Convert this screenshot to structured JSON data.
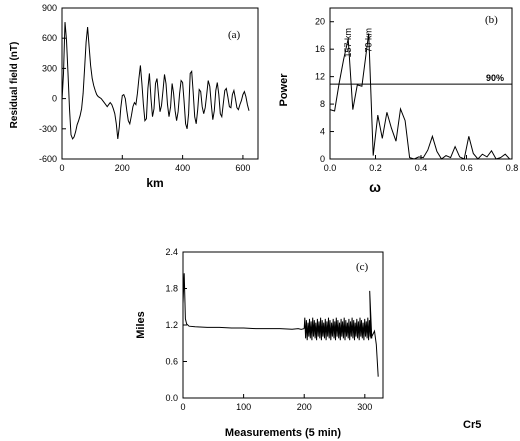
{
  "chart_data": [
    {
      "id": "a",
      "type": "line",
      "panel_label": "(a)",
      "xlabel": "km",
      "ylabel": "Residual field (nT)",
      "xlim": [
        0,
        650
      ],
      "ylim": [
        -600,
        900
      ],
      "xticks": [
        0,
        200,
        400,
        600
      ],
      "yticks": [
        -600,
        -300,
        0,
        300,
        600,
        900
      ],
      "series": [
        {
          "x": [
            0,
            5,
            10,
            15,
            20,
            25,
            30,
            35,
            40,
            45,
            50,
            55,
            60,
            65,
            70,
            75,
            80,
            85,
            90,
            95,
            100,
            105,
            110,
            115,
            120,
            125,
            130,
            135,
            140,
            145,
            150,
            155,
            160,
            165,
            170,
            175,
            180,
            185,
            190,
            195,
            200,
            205,
            210,
            215,
            220,
            225,
            230,
            235,
            240,
            245,
            250,
            255,
            260,
            265,
            270,
            275,
            280,
            285,
            290,
            295,
            300,
            305,
            310,
            315,
            320,
            325,
            330,
            335,
            340,
            345,
            350,
            355,
            360,
            365,
            370,
            375,
            380,
            385,
            390,
            395,
            400,
            405,
            410,
            415,
            420,
            425,
            430,
            435,
            440,
            445,
            450,
            455,
            460,
            465,
            470,
            475,
            480,
            485,
            490,
            495,
            500,
            505,
            510,
            515,
            520,
            525,
            530,
            535,
            540,
            545,
            550,
            555,
            560,
            565,
            570,
            575,
            580,
            585,
            590,
            595,
            600,
            605,
            610,
            615,
            620
          ],
          "y": [
            -20,
            250,
            760,
            580,
            250,
            -100,
            -360,
            -400,
            -380,
            -330,
            -260,
            -220,
            -170,
            -100,
            50,
            300,
            560,
            710,
            520,
            330,
            200,
            130,
            80,
            40,
            20,
            10,
            0,
            -20,
            -40,
            -60,
            -80,
            -60,
            -40,
            -60,
            -100,
            -150,
            -250,
            -400,
            -280,
            -90,
            30,
            40,
            0,
            -120,
            -220,
            -250,
            -170,
            -80,
            -40,
            -60,
            50,
            200,
            330,
            150,
            -60,
            -220,
            -200,
            100,
            250,
            0,
            -180,
            -100,
            150,
            200,
            40,
            -130,
            -70,
            80,
            240,
            150,
            -60,
            -180,
            -80,
            150,
            50,
            -120,
            -220,
            -130,
            50,
            180,
            160,
            -30,
            -250,
            -300,
            -150,
            250,
            270,
            60,
            -180,
            -250,
            -110,
            90,
            70,
            -80,
            -150,
            -90,
            40,
            180,
            120,
            -60,
            -210,
            -120,
            80,
            160,
            40,
            -150,
            -180,
            -50,
            80,
            100,
            20,
            -80,
            -90,
            40,
            80,
            0,
            -90,
            -110,
            -60,
            -20,
            40,
            70,
            20,
            -60,
            -120
          ]
        }
      ]
    },
    {
      "id": "b",
      "type": "line",
      "panel_label": "(b)",
      "xlabel": "ω",
      "ylabel": "Power",
      "xlim": [
        0,
        0.8
      ],
      "ylim": [
        0,
        22
      ],
      "xticks": [
        0.0,
        0.2,
        0.4,
        0.6,
        0.8
      ],
      "yticks": [
        0,
        4,
        8,
        12,
        16,
        20
      ],
      "threshold": {
        "y": 10.9,
        "label": "90%"
      },
      "peak_labels": [
        {
          "x": 0.08,
          "text": "157 km"
        },
        {
          "x": 0.17,
          "text": "70 km"
        }
      ],
      "series": [
        {
          "x": [
            0.0,
            0.02,
            0.04,
            0.06,
            0.08,
            0.1,
            0.12,
            0.14,
            0.17,
            0.19,
            0.21,
            0.23,
            0.25,
            0.27,
            0.29,
            0.31,
            0.33,
            0.35,
            0.37,
            0.39,
            0.41,
            0.43,
            0.45,
            0.47,
            0.49,
            0.51,
            0.53,
            0.55,
            0.57,
            0.59,
            0.61,
            0.63,
            0.65,
            0.67,
            0.69,
            0.71,
            0.73,
            0.75,
            0.77,
            0.79
          ],
          "y": [
            7.2,
            7.0,
            11.0,
            14.5,
            17.5,
            7.2,
            10.8,
            10.6,
            18.3,
            0.5,
            6.4,
            3.0,
            6.8,
            4.5,
            2.6,
            7.3,
            5.6,
            0.2,
            0.0,
            0.3,
            0.2,
            1.3,
            3.3,
            1.1,
            0.0,
            0.5,
            0.2,
            1.8,
            0.3,
            0.0,
            3.3,
            0.8,
            0.0,
            0.7,
            0.3,
            1.2,
            0.0,
            0.2,
            0.7,
            0.0
          ]
        }
      ]
    },
    {
      "id": "c",
      "type": "line",
      "panel_label": "(c)",
      "xlabel": "Measurements (5 min)",
      "ylabel": "Miles",
      "xlim": [
        0,
        330
      ],
      "ylim": [
        0.0,
        2.4
      ],
      "xticks": [
        0,
        100,
        200,
        300
      ],
      "yticks": [
        0.0,
        0.6,
        1.2,
        1.8,
        2.4
      ],
      "series_label": "Cr5",
      "series": [
        {
          "x": [
            0,
            2,
            4,
            6,
            8,
            10,
            20,
            40,
            60,
            80,
            100,
            120,
            140,
            160,
            180,
            190,
            195,
            200
          ],
          "y": [
            1.55,
            2.05,
            1.3,
            1.22,
            1.2,
            1.18,
            1.17,
            1.16,
            1.16,
            1.15,
            1.15,
            1.14,
            1.14,
            1.14,
            1.13,
            1.14,
            1.13,
            1.14
          ]
        }
      ],
      "noisy_segment": {
        "x_start": 200,
        "x_end": 312,
        "low": 0.95,
        "high": 1.32,
        "spike": {
          "x": 308,
          "y": 1.76
        },
        "drop": {
          "x": 322,
          "y": 0.35
        }
      }
    }
  ]
}
